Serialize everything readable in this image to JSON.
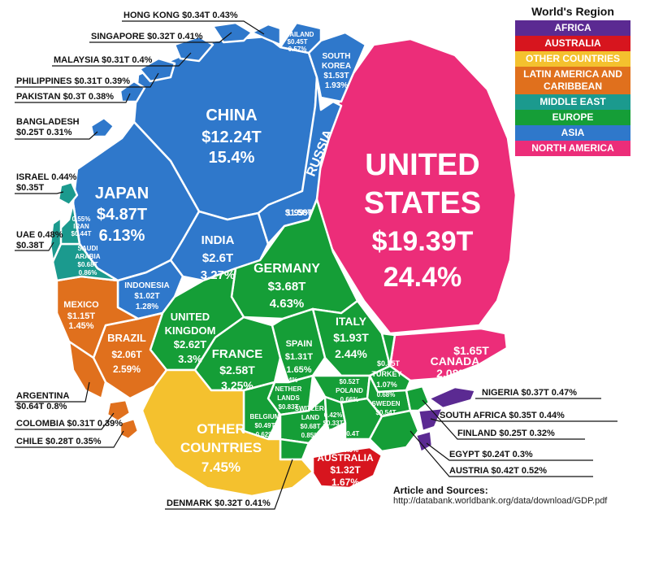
{
  "legend": {
    "title": "World's Region",
    "items": [
      {
        "label": "AFRICA",
        "color": "#5b2a92"
      },
      {
        "label": "AUSTRALIA",
        "color": "#d7151e"
      },
      {
        "label": "OTHER COUNTRIES",
        "color": "#f4c12e"
      },
      {
        "label": "LATIN AMERICA AND CARIBBEAN",
        "color": "#e0701d"
      },
      {
        "label": "MIDDLE EAST",
        "color": "#1b9a8e"
      },
      {
        "label": "EUROPE",
        "color": "#159e37"
      },
      {
        "label": "ASIA",
        "color": "#2f78cb"
      },
      {
        "label": "NORTH AMERICA",
        "color": "#ec2d79"
      }
    ]
  },
  "sources": {
    "heading": "Article and Sources:",
    "url": "http://databank.worldbank.org/data/download/GDP.pdf"
  },
  "chart_data": {
    "type": "voronoi-treemap",
    "title": "",
    "units": "GDP (trillion US$) and share of world GDP (%)",
    "series": [
      {
        "name": "United States",
        "region": "NORTH AMERICA",
        "value": 19.39,
        "share": 24.4,
        "text": [
          "UNITED",
          "STATES",
          "$19.39T",
          "24.4%"
        ]
      },
      {
        "name": "Canada",
        "region": "NORTH AMERICA",
        "value": 1.65,
        "share": 2.08,
        "text": [
          "$1.65T",
          "CANADA",
          "2.08%"
        ]
      },
      {
        "name": "China",
        "region": "ASIA",
        "value": 12.24,
        "share": 15.4,
        "text": [
          "CHINA",
          "$12.24T",
          "15.4%"
        ]
      },
      {
        "name": "Japan",
        "region": "ASIA",
        "value": 4.87,
        "share": 6.13,
        "text": [
          "JAPAN",
          "$4.87T",
          "6.13%"
        ]
      },
      {
        "name": "India",
        "region": "ASIA",
        "value": 2.6,
        "share": 3.27,
        "text": [
          "INDIA",
          "$2.6T",
          "3.27%"
        ]
      },
      {
        "name": "Russia",
        "region": "ASIA",
        "value": 1.58,
        "share": 1.99,
        "text": [
          "RUSSIA",
          "$1.58T",
          "1.99%"
        ]
      },
      {
        "name": "South Korea",
        "region": "ASIA",
        "value": 1.53,
        "share": 1.93,
        "text": [
          "SOUTH",
          "KOREA",
          "$1.53T",
          "1.93%"
        ]
      },
      {
        "name": "Indonesia",
        "region": "ASIA",
        "value": 1.02,
        "share": 1.28,
        "text": [
          "INDONESIA",
          "$1.02T",
          "1.28%"
        ]
      },
      {
        "name": "Thailand",
        "region": "ASIA",
        "value": 0.45,
        "share": 0.57,
        "text": [
          "THAILAND",
          "$0.45T",
          "0.57%"
        ]
      },
      {
        "name": "Hong Kong",
        "region": "ASIA",
        "value": 0.34,
        "share": 0.43,
        "text": [
          "HONG KONG  $0.34T  0.43%"
        ]
      },
      {
        "name": "Singapore",
        "region": "ASIA",
        "value": 0.32,
        "share": 0.41,
        "text": [
          "SINGAPORE $0.32T  0.41%"
        ]
      },
      {
        "name": "Malaysia",
        "region": "ASIA",
        "value": 0.31,
        "share": 0.4,
        "text": [
          "MALAYSIA  $0.31T   0.4%"
        ]
      },
      {
        "name": "Philippines",
        "region": "ASIA",
        "value": 0.31,
        "share": 0.39,
        "text": [
          "PHILIPPINES $0.31T  0.39%"
        ]
      },
      {
        "name": "Pakistan",
        "region": "ASIA",
        "value": 0.3,
        "share": 0.38,
        "text": [
          "PAKISTAN  $0.3T   0.38%"
        ]
      },
      {
        "name": "Bangladesh",
        "region": "ASIA",
        "value": 0.25,
        "share": 0.31,
        "text": [
          "BANGLADESH",
          "$0.25T  0.31%"
        ]
      },
      {
        "name": "Germany",
        "region": "EUROPE",
        "value": 3.68,
        "share": 4.63,
        "text": [
          "GERMANY",
          "$3.68T",
          "4.63%"
        ]
      },
      {
        "name": "United Kingdom",
        "region": "EUROPE",
        "value": 2.62,
        "share": 3.3,
        "text": [
          "UNITED",
          "KINGDOM",
          "$2.62T",
          "3.3%"
        ]
      },
      {
        "name": "France",
        "region": "EUROPE",
        "value": 2.58,
        "share": 3.25,
        "text": [
          "FRANCE",
          "$2.58T",
          "3.25%"
        ]
      },
      {
        "name": "Italy",
        "region": "EUROPE",
        "value": 1.93,
        "share": 2.44,
        "text": [
          "ITALY",
          "$1.93T",
          "2.44%"
        ]
      },
      {
        "name": "Spain",
        "region": "EUROPE",
        "value": 1.31,
        "share": 1.65,
        "text": [
          "SPAIN",
          "$1.31T",
          "1.65%"
        ]
      },
      {
        "name": "Turkey",
        "region": "EUROPE",
        "value": 0.85,
        "share": 1.07,
        "text": [
          "$0.85T",
          "TURKEY",
          "1.07%"
        ]
      },
      {
        "name": "Netherlands",
        "region": "EUROPE",
        "value": 0.83,
        "share": 1.04,
        "text": [
          "1.04%",
          "NETHER",
          "LANDS",
          "$0.83T"
        ]
      },
      {
        "name": "Poland",
        "region": "EUROPE",
        "value": 0.52,
        "share": 0.66,
        "text": [
          "$0.52T",
          "POLAND",
          "0.66%"
        ]
      },
      {
        "name": "Sweden",
        "region": "EUROPE",
        "value": 0.54,
        "share": 0.68,
        "text": [
          "0.68%",
          "SWEDEN",
          "$0.54T"
        ]
      },
      {
        "name": "Belgium",
        "region": "EUROPE",
        "value": 0.49,
        "share": 0.62,
        "text": [
          "BELGIUM",
          "$0.49T",
          "0.62%"
        ]
      },
      {
        "name": "Switzerland",
        "region": "EUROPE",
        "value": 0.68,
        "share": 0.85,
        "text": [
          "SWITZER-",
          "LAND",
          "$0.68T",
          "0.85%"
        ]
      },
      {
        "name": "Ireland",
        "region": "EUROPE",
        "value": 0.33,
        "share": 0.42,
        "text": [
          "0.42%",
          "$0.33T",
          "IRL"
        ]
      },
      {
        "name": "Norway",
        "region": "EUROPE",
        "value": 0.4,
        "share": 0.5,
        "text": [
          "$0.4T",
          "NORWAY",
          "0.5%"
        ]
      },
      {
        "name": "Finland",
        "region": "EUROPE",
        "value": 0.25,
        "share": 0.32,
        "text": [
          "FINLAND  $0.25T   0.32%"
        ]
      },
      {
        "name": "Austria",
        "region": "EUROPE",
        "value": 0.42,
        "share": 0.52,
        "text": [
          "AUSTRIA  $0.42T   0.52%"
        ]
      },
      {
        "name": "Denmark",
        "region": "EUROPE",
        "value": 0.32,
        "share": 0.41,
        "text": [
          "DENMARK $0.32T  0.41%"
        ]
      },
      {
        "name": "Brazil",
        "region": "LATIN AMERICA AND CARIBBEAN",
        "value": 2.06,
        "share": 2.59,
        "text": [
          "BRAZIL",
          "$2.06T",
          "2.59%"
        ]
      },
      {
        "name": "Mexico",
        "region": "LATIN AMERICA AND CARIBBEAN",
        "value": 1.15,
        "share": 1.45,
        "text": [
          "MEXICO",
          "$1.15T",
          "1.45%"
        ]
      },
      {
        "name": "Argentina",
        "region": "LATIN AMERICA AND CARIBBEAN",
        "value": 0.64,
        "share": 0.8,
        "text": [
          "ARGENTINA",
          "$0.64T  0.8%"
        ]
      },
      {
        "name": "Colombia",
        "region": "LATIN AMERICA AND CARIBBEAN",
        "value": 0.31,
        "share": 0.39,
        "text": [
          "COLOMBIA $0.31T  0.39%"
        ]
      },
      {
        "name": "Chile",
        "region": "LATIN AMERICA AND CARIBBEAN",
        "value": 0.28,
        "share": 0.35,
        "text": [
          "CHILE  $0.28T   0.35%"
        ]
      },
      {
        "name": "Saudi Arabia",
        "region": "MIDDLE EAST",
        "value": 0.68,
        "share": 0.86,
        "text": [
          "SAUDI",
          "ARABIA",
          "$0.68T",
          "0.86%"
        ]
      },
      {
        "name": "Iran",
        "region": "MIDDLE EAST",
        "value": 0.44,
        "share": 0.55,
        "text": [
          "0.55%",
          "IRAN",
          "$0.44T"
        ]
      },
      {
        "name": "UAE",
        "region": "MIDDLE EAST",
        "value": 0.38,
        "share": 0.48,
        "text": [
          "UAE  0.48%",
          "$0.38T"
        ]
      },
      {
        "name": "Israel",
        "region": "MIDDLE EAST",
        "value": 0.35,
        "share": 0.44,
        "text": [
          "ISRAEL 0.44%",
          "$0.35T"
        ]
      },
      {
        "name": "Australia",
        "region": "AUSTRALIA",
        "value": 1.32,
        "share": 1.67,
        "text": [
          "AUSTRALIA",
          "$1.32T",
          "1.67%"
        ]
      },
      {
        "name": "Nigeria",
        "region": "AFRICA",
        "value": 0.37,
        "share": 0.47,
        "text": [
          "NIGERIA $0.37T  0.47%"
        ]
      },
      {
        "name": "South Africa",
        "region": "AFRICA",
        "value": 0.35,
        "share": 0.44,
        "text": [
          "SOUTH AFRICA $0.35T  0.44%"
        ]
      },
      {
        "name": "Egypt",
        "region": "AFRICA",
        "value": 0.24,
        "share": 0.3,
        "text": [
          "EGYPT  $0.24T   0.3%"
        ]
      },
      {
        "name": "Other Countries",
        "region": "OTHER COUNTRIES",
        "value": 5.92,
        "share": 7.45,
        "text": [
          "OTHER",
          "COUNTRIES",
          "7.45%"
        ]
      }
    ]
  }
}
